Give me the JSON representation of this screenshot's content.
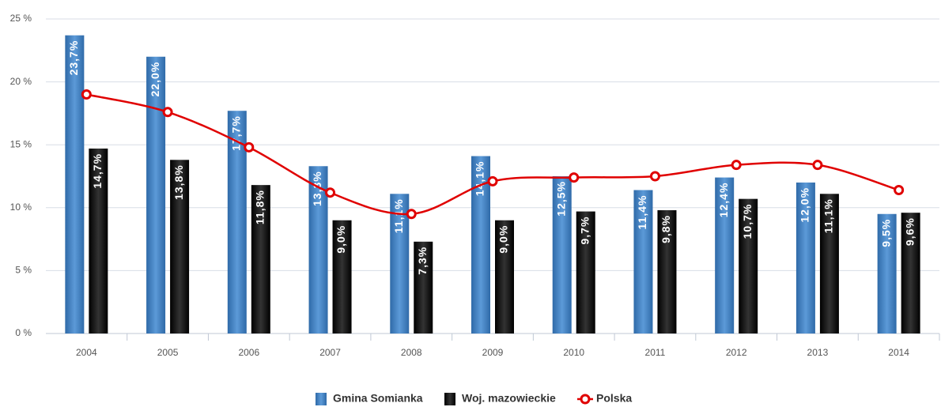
{
  "chart_data": {
    "type": "bar-line",
    "categories": [
      "2004",
      "2005",
      "2006",
      "2007",
      "2008",
      "2009",
      "2010",
      "2011",
      "2012",
      "2013",
      "2014"
    ],
    "series": [
      {
        "name": "Gmina Somianka",
        "color": "#4a86c8",
        "type": "bar",
        "values": [
          23.7,
          22.0,
          17.7,
          13.3,
          11.1,
          14.1,
          12.5,
          11.4,
          12.4,
          12.0,
          9.5
        ],
        "value_labels": [
          "23,7%",
          "22,0%",
          "17,7%",
          "13,3%",
          "11,1%",
          "14,1%",
          "12,5%",
          "11,4%",
          "12,4%",
          "12,0%",
          "9,5%"
        ]
      },
      {
        "name": "Woj. mazowieckie",
        "color": "#1a1a1a",
        "type": "bar",
        "values": [
          14.7,
          13.8,
          11.8,
          9.0,
          7.3,
          9.0,
          9.7,
          9.8,
          10.7,
          11.1,
          9.6
        ],
        "value_labels": [
          "14,7%",
          "13,8%",
          "11,8%",
          "9,0%",
          "7,3%",
          "9,0%",
          "9,7%",
          "9,8%",
          "10,7%",
          "11,1%",
          "9,6%"
        ]
      },
      {
        "name": "Polska",
        "color": "#e00000",
        "type": "line",
        "values": [
          19.0,
          17.6,
          14.8,
          11.2,
          9.5,
          12.1,
          12.4,
          12.5,
          13.4,
          13.4,
          11.4
        ]
      }
    ],
    "ylim": [
      0,
      25
    ],
    "yticks": [
      {
        "value": 0,
        "label": "0 %"
      },
      {
        "value": 5,
        "label": "5 %"
      },
      {
        "value": 10,
        "label": "10 %"
      },
      {
        "value": 15,
        "label": "15 %"
      },
      {
        "value": 20,
        "label": "20 %"
      },
      {
        "value": 25,
        "label": "25 %"
      }
    ],
    "grid": true,
    "legend": "bottom"
  }
}
